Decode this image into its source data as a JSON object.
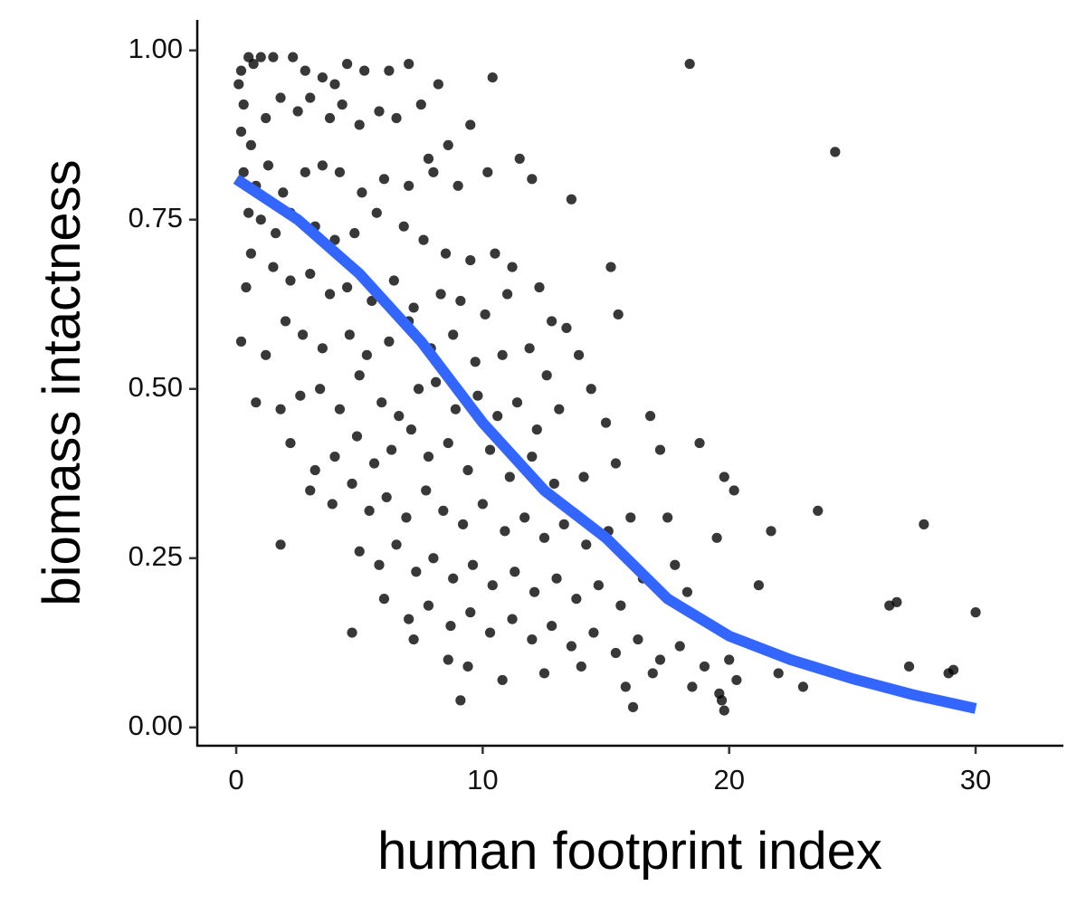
{
  "chart_data": {
    "type": "scatter",
    "x_label": "human footprint index",
    "y_label": "biomass intactness",
    "color": "#000000",
    "xlim": [
      -1.58,
      33.56
    ],
    "ylim": [
      -0.027,
      1.045
    ],
    "xticks": [
      0,
      10,
      20,
      30
    ],
    "yticks": [
      {
        "value": 0,
        "label": "0.00"
      },
      0.25,
      {
        "value": 0.5,
        "label": "0.50"
      },
      0.75,
      {
        "value": 1,
        "label": "1.00"
      }
    ],
    "grid": false,
    "x": [
      0.1,
      0.2,
      0.3,
      0.5,
      0.7,
      1.0,
      1.5,
      2.3,
      2.8,
      3.5,
      4.0,
      4.5,
      5.2,
      6.2,
      0.2,
      0.6,
      1.2,
      1.8,
      2.5,
      3.0,
      3.8,
      4.3,
      5.0,
      5.8,
      6.5,
      7.5,
      8.2,
      9.5,
      8.6,
      7.8,
      0.3,
      0.8,
      1.3,
      1.9,
      2.8,
      3.5,
      4.2,
      5.1,
      6.0,
      7.0,
      8.0,
      9.0,
      10.2,
      11.5,
      12.0,
      0.5,
      1.0,
      1.6,
      2.2,
      3.2,
      4.0,
      4.8,
      5.7,
      6.8,
      7.6,
      8.5,
      9.5,
      10.5,
      11.2,
      0.6,
      1.5,
      2.2,
      3.0,
      3.8,
      4.5,
      5.5,
      6.4,
      7.2,
      8.3,
      9.1,
      10.1,
      11.0,
      12.3,
      12.8,
      13.4,
      2.0,
      2.7,
      3.5,
      4.6,
      5.3,
      6.2,
      7.0,
      7.9,
      8.8,
      9.7,
      10.8,
      11.9,
      12.6,
      13.9,
      1.2,
      1.8,
      2.6,
      3.4,
      4.2,
      5.0,
      5.9,
      6.6,
      7.4,
      8.1,
      8.9,
      9.8,
      10.6,
      11.4,
      12.2,
      13.1,
      14.4,
      15.0,
      2.2,
      3.2,
      4.0,
      4.9,
      5.6,
      6.3,
      7.1,
      7.8,
      8.6,
      9.4,
      10.3,
      11.1,
      12.0,
      12.9,
      14.1,
      15.4,
      16.8,
      17.2,
      3.0,
      3.9,
      4.7,
      5.4,
      6.1,
      6.9,
      7.7,
      8.4,
      9.2,
      10.0,
      10.9,
      11.7,
      12.5,
      13.3,
      14.2,
      15.1,
      16.0,
      17.5,
      18.8,
      19.5,
      5.0,
      5.8,
      6.5,
      7.3,
      8.0,
      8.8,
      9.6,
      10.4,
      11.3,
      12.1,
      13.0,
      13.8,
      14.7,
      15.6,
      16.5,
      17.8,
      18.3,
      6.0,
      7.0,
      7.8,
      8.7,
      9.5,
      10.3,
      11.2,
      12.0,
      12.8,
      13.6,
      14.5,
      15.4,
      16.3,
      17.2,
      18.0,
      19.0,
      20.0,
      8.6,
      9.4,
      10.8,
      12.5,
      14.0,
      15.8,
      16.9,
      18.5,
      20.3,
      19.6,
      7.2,
      18.4,
      24.3,
      23.6,
      27.9,
      30.0,
      26.8,
      26.5,
      27.3,
      28.9,
      29.1,
      23.0,
      22.0,
      21.7,
      21.2,
      20.2,
      19.8,
      19.8,
      19.7,
      15.2,
      15.5,
      13.6,
      16.1,
      9.1,
      10.4,
      7.0,
      4.7,
      1.8,
      0.2,
      0.8,
      0.4
    ],
    "values": [
      0.95,
      0.97,
      0.92,
      0.99,
      0.98,
      0.99,
      0.99,
      0.99,
      0.97,
      0.96,
      0.95,
      0.98,
      0.97,
      0.97,
      0.88,
      0.86,
      0.9,
      0.93,
      0.91,
      0.93,
      0.9,
      0.92,
      0.89,
      0.91,
      0.9,
      0.92,
      0.95,
      0.89,
      0.86,
      0.84,
      0.82,
      0.8,
      0.83,
      0.79,
      0.82,
      0.83,
      0.82,
      0.79,
      0.81,
      0.8,
      0.82,
      0.8,
      0.82,
      0.84,
      0.81,
      0.76,
      0.75,
      0.73,
      0.76,
      0.74,
      0.72,
      0.73,
      0.76,
      0.74,
      0.72,
      0.7,
      0.69,
      0.7,
      0.68,
      0.7,
      0.68,
      0.66,
      0.67,
      0.64,
      0.65,
      0.63,
      0.66,
      0.62,
      0.64,
      0.63,
      0.61,
      0.64,
      0.65,
      0.6,
      0.59,
      0.6,
      0.58,
      0.56,
      0.58,
      0.55,
      0.57,
      0.6,
      0.56,
      0.58,
      0.54,
      0.55,
      0.56,
      0.52,
      0.55,
      0.55,
      0.47,
      0.49,
      0.5,
      0.47,
      0.52,
      0.48,
      0.46,
      0.5,
      0.51,
      0.47,
      0.49,
      0.46,
      0.48,
      0.44,
      0.47,
      0.5,
      0.45,
      0.42,
      0.38,
      0.4,
      0.43,
      0.39,
      0.41,
      0.44,
      0.4,
      0.42,
      0.38,
      0.41,
      0.37,
      0.4,
      0.36,
      0.37,
      0.39,
      0.46,
      0.41,
      0.35,
      0.33,
      0.36,
      0.32,
      0.34,
      0.31,
      0.35,
      0.32,
      0.3,
      0.33,
      0.29,
      0.31,
      0.28,
      0.3,
      0.27,
      0.29,
      0.31,
      0.31,
      0.42,
      0.28,
      0.26,
      0.24,
      0.27,
      0.23,
      0.25,
      0.22,
      0.24,
      0.21,
      0.23,
      0.2,
      0.22,
      0.19,
      0.21,
      0.18,
      0.22,
      0.24,
      0.2,
      0.19,
      0.16,
      0.18,
      0.15,
      0.17,
      0.14,
      0.16,
      0.13,
      0.15,
      0.12,
      0.14,
      0.11,
      0.13,
      0.1,
      0.12,
      0.09,
      0.1,
      0.1,
      0.09,
      0.07,
      0.08,
      0.09,
      0.06,
      0.08,
      0.06,
      0.07,
      0.05,
      0.13,
      0.98,
      0.85,
      0.32,
      0.3,
      0.17,
      0.185,
      0.18,
      0.09,
      0.08,
      0.085,
      0.06,
      0.08,
      0.29,
      0.21,
      0.35,
      0.37,
      0.025,
      0.04,
      0.68,
      0.61,
      0.78,
      0.03,
      0.04,
      0.96,
      0.98,
      0.14,
      0.27,
      0.57,
      0.48,
      0.65
    ],
    "fit": {
      "color": "#3366ff",
      "x": [
        0,
        2.5,
        5,
        7.5,
        10,
        12.5,
        15,
        17.5,
        20,
        22.5,
        25,
        27.5,
        30
      ],
      "values": [
        0.81,
        0.75,
        0.67,
        0.57,
        0.45,
        0.35,
        0.28,
        0.19,
        0.135,
        0.1,
        0.072,
        0.048,
        0.028
      ]
    }
  }
}
